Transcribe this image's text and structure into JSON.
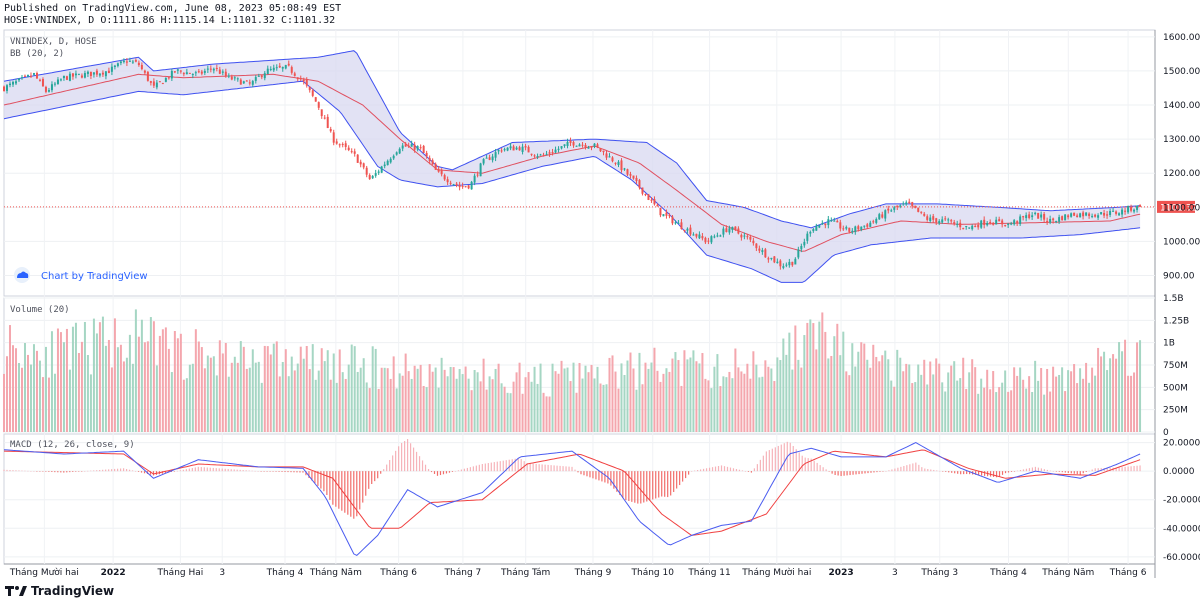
{
  "header": {
    "published": "Published on TradingView.com, June 08, 2023 05:08:49 EST",
    "ohlc": "HOSE:VNINDEX, D O:1111.86 H:1115.14 L:1101.32 C:1101.32"
  },
  "footer": {
    "brand": "TradingView"
  },
  "colors": {
    "up": "#26a69a",
    "down": "#ef5350",
    "bb_line": "#3f51f0",
    "bb_fill": "#d8d8f0",
    "bb_basis": "#e05060",
    "macd": "#4a5cf0",
    "signal": "#f04040",
    "vol_up": "#a5d6c3",
    "vol_down": "#f4a6ad",
    "last_price": "#ef5350"
  },
  "chart_data": [
    {
      "type": "candlestick",
      "pane_labels": [
        "VNINDEX, D, HOSE",
        "BB (20, 2)"
      ],
      "watermark": "Chart by TradingView",
      "last_price": 1101.32,
      "last_price_label": "1101.32",
      "ylim": [
        840,
        1620
      ],
      "y_ticks": [
        {
          "v": 1600,
          "label": "1600.00"
        },
        {
          "v": 1500,
          "label": "1500.00"
        },
        {
          "v": 1400,
          "label": "1400.00"
        },
        {
          "v": 1300,
          "label": "1300.00"
        },
        {
          "v": 1200,
          "label": "1200.00"
        },
        {
          "v": 1100,
          "label": "1100.00"
        },
        {
          "v": 1000,
          "label": "1000.00"
        },
        {
          "v": 900,
          "label": "900.00"
        }
      ],
      "n_bars": 380,
      "close_anchors": [
        [
          0,
          1450
        ],
        [
          10,
          1470
        ],
        [
          20,
          1490
        ],
        [
          28,
          1440
        ],
        [
          40,
          1480
        ],
        [
          55,
          1490
        ],
        [
          70,
          1500
        ],
        [
          82,
          1530
        ],
        [
          90,
          1520
        ],
        [
          100,
          1450
        ],
        [
          115,
          1500
        ],
        [
          130,
          1490
        ],
        [
          140,
          1510
        ],
        [
          150,
          1480
        ],
        [
          165,
          1460
        ],
        [
          175,
          1500
        ],
        [
          190,
          1510
        ],
        [
          200,
          1470
        ],
        [
          210,
          1400
        ],
        [
          220,
          1300
        ],
        [
          235,
          1250
        ],
        [
          245,
          1180
        ],
        [
          255,
          1230
        ],
        [
          265,
          1280
        ],
        [
          278,
          1275
        ],
        [
          290,
          1200
        ],
        [
          305,
          1160
        ],
        [
          312,
          1165
        ],
        [
          320,
          1230
        ],
        [
          332,
          1270
        ],
        [
          345,
          1275
        ],
        [
          360,
          1250
        ],
        [
          380,
          1290
        ],
        [
          395,
          1280
        ],
        [
          410,
          1230
        ],
        [
          425,
          1160
        ],
        [
          440,
          1080
        ],
        [
          455,
          1040
        ],
        [
          470,
          1000
        ],
        [
          485,
          1040
        ],
        [
          497,
          1010
        ],
        [
          510,
          960
        ],
        [
          520,
          930
        ],
        [
          528,
          940
        ],
        [
          540,
          1040
        ],
        [
          552,
          1060
        ],
        [
          565,
          1030
        ],
        [
          578,
          1050
        ],
        [
          592,
          1090
        ],
        [
          604,
          1110
        ],
        [
          618,
          1065
        ],
        [
          630,
          1060
        ],
        [
          645,
          1040
        ],
        [
          658,
          1060
        ],
        [
          672,
          1050
        ],
        [
          688,
          1080
        ],
        [
          700,
          1060
        ],
        [
          715,
          1080
        ],
        [
          732,
          1080
        ],
        [
          745,
          1085
        ],
        [
          752,
          1095
        ],
        [
          760,
          1101.32
        ]
      ],
      "close_anchors_note": "x in bar index units (0-760 scale), y in index points",
      "bb_upper": [
        [
          0,
          1470
        ],
        [
          90,
          1540
        ],
        [
          100,
          1500
        ],
        [
          140,
          1520
        ],
        [
          210,
          1540
        ],
        [
          235,
          1560
        ],
        [
          265,
          1320
        ],
        [
          290,
          1220
        ],
        [
          300,
          1210
        ],
        [
          340,
          1290
        ],
        [
          395,
          1300
        ],
        [
          430,
          1290
        ],
        [
          450,
          1230
        ],
        [
          470,
          1120
        ],
        [
          495,
          1100
        ],
        [
          520,
          1060
        ],
        [
          540,
          1040
        ],
        [
          565,
          1080
        ],
        [
          590,
          1110
        ],
        [
          625,
          1110
        ],
        [
          665,
          1100
        ],
        [
          700,
          1090
        ],
        [
          745,
          1100
        ],
        [
          760,
          1105
        ]
      ],
      "bb_basis": [
        [
          0,
          1400
        ],
        [
          90,
          1490
        ],
        [
          120,
          1480
        ],
        [
          180,
          1490
        ],
        [
          210,
          1470
        ],
        [
          240,
          1400
        ],
        [
          265,
          1300
        ],
        [
          290,
          1210
        ],
        [
          320,
          1200
        ],
        [
          360,
          1250
        ],
        [
          395,
          1280
        ],
        [
          425,
          1230
        ],
        [
          450,
          1150
        ],
        [
          480,
          1050
        ],
        [
          510,
          1000
        ],
        [
          535,
          970
        ],
        [
          560,
          1020
        ],
        [
          600,
          1060
        ],
        [
          640,
          1050
        ],
        [
          690,
          1055
        ],
        [
          740,
          1060
        ],
        [
          760,
          1080
        ]
      ],
      "bb_lower": [
        [
          0,
          1360
        ],
        [
          90,
          1440
        ],
        [
          120,
          1430
        ],
        [
          200,
          1470
        ],
        [
          225,
          1380
        ],
        [
          250,
          1220
        ],
        [
          265,
          1180
        ],
        [
          290,
          1160
        ],
        [
          320,
          1170
        ],
        [
          360,
          1220
        ],
        [
          395,
          1250
        ],
        [
          420,
          1180
        ],
        [
          445,
          1080
        ],
        [
          470,
          960
        ],
        [
          500,
          920
        ],
        [
          520,
          880
        ],
        [
          535,
          880
        ],
        [
          555,
          960
        ],
        [
          580,
          990
        ],
        [
          620,
          1010
        ],
        [
          680,
          1010
        ],
        [
          720,
          1020
        ],
        [
          760,
          1040
        ]
      ]
    },
    {
      "type": "bar",
      "pane_label": "Volume (20)",
      "ylim": [
        0,
        1500000000
      ],
      "y_ticks": [
        {
          "v": 1500000000,
          "label": "1.5B"
        },
        {
          "v": 1250000000,
          "label": "1.25B"
        },
        {
          "v": 1000000000,
          "label": "1B"
        },
        {
          "v": 750000000,
          "label": "750M"
        },
        {
          "v": 500000000,
          "label": "500M"
        },
        {
          "v": 250000000,
          "label": "250M"
        },
        {
          "v": 0,
          "label": "0"
        }
      ],
      "level_anchors": [
        [
          0,
          1000
        ],
        [
          40,
          900
        ],
        [
          80,
          1100
        ],
        [
          120,
          900
        ],
        [
          160,
          850
        ],
        [
          200,
          800
        ],
        [
          240,
          750
        ],
        [
          280,
          700
        ],
        [
          320,
          650
        ],
        [
          360,
          600
        ],
        [
          400,
          650
        ],
        [
          440,
          750
        ],
        [
          480,
          700
        ],
        [
          520,
          850
        ],
        [
          545,
          1150
        ],
        [
          565,
          850
        ],
        [
          600,
          700
        ],
        [
          640,
          650
        ],
        [
          680,
          600
        ],
        [
          720,
          700
        ],
        [
          745,
          850
        ],
        [
          760,
          1000
        ]
      ],
      "level_units": "millions of shares"
    },
    {
      "type": "line",
      "pane_label": "MACD (12, 26, close, 9)",
      "ylim": [
        -65,
        26
      ],
      "y_ticks": [
        {
          "v": 20,
          "label": "20.0000"
        },
        {
          "v": 0,
          "label": "0.0000"
        },
        {
          "v": -20,
          "label": "-20.0000"
        },
        {
          "v": -40,
          "label": "-40.0000"
        },
        {
          "v": -60,
          "label": "-60.0000"
        }
      ],
      "macd": [
        [
          0,
          15
        ],
        [
          40,
          12
        ],
        [
          80,
          14
        ],
        [
          100,
          -5
        ],
        [
          130,
          8
        ],
        [
          170,
          3
        ],
        [
          200,
          2
        ],
        [
          215,
          -18
        ],
        [
          235,
          -60
        ],
        [
          250,
          -45
        ],
        [
          270,
          -13
        ],
        [
          290,
          -25
        ],
        [
          320,
          -15
        ],
        [
          345,
          10
        ],
        [
          380,
          14
        ],
        [
          405,
          -5
        ],
        [
          425,
          -35
        ],
        [
          445,
          -52
        ],
        [
          460,
          -45
        ],
        [
          480,
          -38
        ],
        [
          500,
          -35
        ],
        [
          525,
          12
        ],
        [
          540,
          16
        ],
        [
          560,
          10
        ],
        [
          590,
          10
        ],
        [
          610,
          20
        ],
        [
          640,
          2
        ],
        [
          665,
          -8
        ],
        [
          690,
          0
        ],
        [
          720,
          -5
        ],
        [
          745,
          5
        ],
        [
          760,
          12
        ]
      ],
      "signal": [
        [
          0,
          14
        ],
        [
          40,
          13
        ],
        [
          80,
          12
        ],
        [
          100,
          -2
        ],
        [
          130,
          5
        ],
        [
          170,
          3
        ],
        [
          200,
          3
        ],
        [
          220,
          -5
        ],
        [
          245,
          -40
        ],
        [
          265,
          -40
        ],
        [
          285,
          -22
        ],
        [
          320,
          -20
        ],
        [
          350,
          5
        ],
        [
          385,
          12
        ],
        [
          415,
          0
        ],
        [
          440,
          -30
        ],
        [
          460,
          -45
        ],
        [
          480,
          -42
        ],
        [
          510,
          -30
        ],
        [
          535,
          5
        ],
        [
          555,
          14
        ],
        [
          590,
          10
        ],
        [
          615,
          15
        ],
        [
          645,
          2
        ],
        [
          670,
          -5
        ],
        [
          700,
          -2
        ],
        [
          730,
          -3
        ],
        [
          760,
          8
        ]
      ]
    }
  ],
  "x_axis": {
    "xlim": [
      0,
      770
    ],
    "labels": [
      {
        "x": 27,
        "label": "Tháng Mười hai"
      },
      {
        "x": 73,
        "label": "2022",
        "bold": true
      },
      {
        "x": 118,
        "label": "Tháng Hai"
      },
      {
        "x": 146,
        "label": "3"
      },
      {
        "x": 188,
        "label": "Tháng 4"
      },
      {
        "x": 222,
        "label": "Tháng Năm"
      },
      {
        "x": 264,
        "label": "Tháng 6"
      },
      {
        "x": 307,
        "label": "Tháng 7"
      },
      {
        "x": 349,
        "label": "Tháng Tám"
      },
      {
        "x": 394,
        "label": "Tháng 9"
      },
      {
        "x": 434,
        "label": "Tháng 10"
      },
      {
        "x": 472,
        "label": "Tháng 11"
      },
      {
        "x": 517,
        "label": "Tháng Mười hai"
      },
      {
        "x": 560,
        "label": "2023",
        "bold": true
      },
      {
        "x": 596,
        "label": "3"
      },
      {
        "x": 626,
        "label": "Tháng 3"
      },
      {
        "x": 672,
        "label": "Tháng 4"
      },
      {
        "x": 712,
        "label": "Tháng Năm"
      },
      {
        "x": 752,
        "label": "Tháng 6"
      }
    ]
  }
}
